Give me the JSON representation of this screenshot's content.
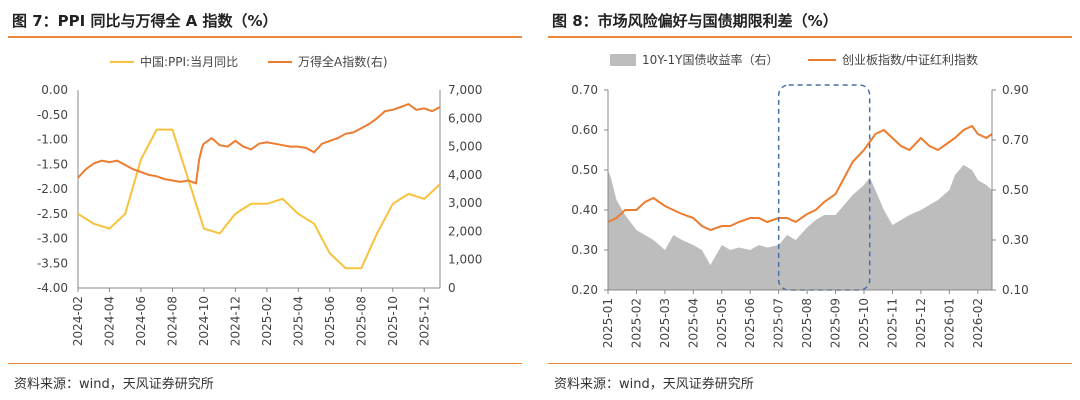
{
  "left": {
    "title": "图 7：PPI 同比与万得全 A 指数（%）",
    "source": "资料来源：wind，天风证券研究所"
  },
  "right": {
    "title": "图 8：市场风险偏好与国债期限利差（%）",
    "source": "资料来源：wind，天风证券研究所"
  },
  "chart_data": [
    {
      "type": "line",
      "title": "PPI 同比与万得全 A 指数（%）",
      "x_labels": [
        "2024-02",
        "2024-04",
        "2024-06",
        "2024-08",
        "2024-10",
        "2024-12",
        "2025-02",
        "2025-04",
        "2025-06",
        "2025-08",
        "2025-10",
        "2025-12"
      ],
      "y_left_ticks": [
        "0.00",
        "-0.50",
        "-1.00",
        "-1.50",
        "-2.00",
        "-2.50",
        "-3.00",
        "-3.50",
        "-4.00"
      ],
      "y_left_range": [
        -4.0,
        0.0
      ],
      "y_right_ticks": [
        "7,000",
        "6,000",
        "5,000",
        "4,000",
        "3,000",
        "2,000",
        "1,000",
        "0"
      ],
      "y_right_range": [
        0,
        7000
      ],
      "legend": [
        "中国:PPI:当月同比",
        "万得全A指数(右)"
      ],
      "colors": {
        "ppi": "#f7c23e",
        "index": "#ec7c30"
      },
      "series": [
        {
          "name": "中国:PPI:当月同比",
          "axis": "left",
          "x": [
            0,
            1,
            2,
            3,
            4,
            5,
            6,
            7,
            8,
            9,
            10,
            11,
            12,
            13,
            14,
            15,
            16,
            17,
            18,
            19,
            20,
            21,
            22,
            23
          ],
          "values": [
            -2.5,
            -2.7,
            -2.8,
            -2.5,
            -1.4,
            -0.8,
            -0.8,
            -1.8,
            -2.8,
            -2.9,
            -2.5,
            -2.3,
            -2.3,
            -2.2,
            -2.5,
            -2.7,
            -3.3,
            -3.6,
            -3.6,
            -2.9,
            -2.3,
            -2.1,
            -2.2,
            -1.9
          ]
        },
        {
          "name": "万得全A指数(右)",
          "axis": "right",
          "x": [
            0,
            0.5,
            1,
            1.5,
            2,
            2.5,
            3,
            3.5,
            4,
            4.5,
            5,
            5.5,
            6,
            6.5,
            7,
            7.5,
            7.7,
            7.9,
            8,
            8.5,
            9,
            9.5,
            10,
            10.5,
            11,
            11.5,
            12,
            12.5,
            13,
            13.5,
            14,
            14.5,
            15,
            15.5,
            16,
            16.5,
            17,
            17.5,
            18,
            18.5,
            19,
            19.5,
            20,
            20.5,
            21,
            21.5,
            22,
            22.5,
            23
          ],
          "values": [
            3900,
            4200,
            4400,
            4500,
            4450,
            4500,
            4350,
            4200,
            4100,
            4000,
            3950,
            3850,
            3800,
            3750,
            3800,
            3700,
            4550,
            5000,
            5100,
            5300,
            5050,
            5000,
            5200,
            5000,
            4900,
            5100,
            5150,
            5100,
            5050,
            5000,
            5000,
            4950,
            4800,
            5100,
            5200,
            5300,
            5450,
            5500,
            5650,
            5800,
            6000,
            6250,
            6300,
            6400,
            6500,
            6300,
            6350,
            6250,
            6400
          ]
        }
      ]
    },
    {
      "type": "line",
      "title": "市场风险偏好与国债期限利差（%）",
      "x_labels": [
        "2025-01",
        "2025-02",
        "2025-03",
        "2025-04",
        "2025-05",
        "2025-06",
        "2025-07",
        "2025-08",
        "2025-09",
        "2025-10",
        "2025-11",
        "2025-12",
        "2026-01",
        "2026-02"
      ],
      "y_left_ticks": [
        "0.70",
        "0.60",
        "0.50",
        "0.40",
        "0.30",
        "0.20"
      ],
      "y_left_range": [
        0.2,
        0.7
      ],
      "y_right_ticks": [
        "0.90",
        "0.70",
        "0.50",
        "0.30",
        "0.10"
      ],
      "y_right_range": [
        0.1,
        0.9
      ],
      "legend": [
        "10Y-1Y国债收益率（右）",
        "创业板指数/中证红利指数"
      ],
      "colors": {
        "area": "#bdbdbd",
        "ratio": "#ec7c30",
        "box": "#4a6fa5"
      },
      "series": [
        {
          "name": "10Y-1Y国债收益率（右）",
          "axis": "right",
          "type": "area",
          "x": [
            0,
            0.1,
            0.3,
            0.6,
            1,
            1.3,
            1.6,
            2,
            2.3,
            2.6,
            3,
            3.3,
            3.6,
            4,
            4.3,
            4.6,
            5,
            5.3,
            5.6,
            6,
            6.3,
            6.6,
            7,
            7.3,
            7.6,
            8,
            8.3,
            8.6,
            9,
            9.2,
            9.4,
            9.7,
            10,
            10.3,
            10.6,
            11,
            11.3,
            11.6,
            12,
            12.2,
            12.5,
            12.8,
            13,
            13.3,
            13.5
          ],
          "values": [
            0.58,
            0.55,
            0.46,
            0.4,
            0.34,
            0.32,
            0.3,
            0.26,
            0.32,
            0.3,
            0.28,
            0.26,
            0.2,
            0.28,
            0.26,
            0.27,
            0.26,
            0.28,
            0.27,
            0.28,
            0.32,
            0.3,
            0.35,
            0.38,
            0.4,
            0.4,
            0.44,
            0.48,
            0.52,
            0.55,
            0.5,
            0.42,
            0.36,
            0.38,
            0.4,
            0.42,
            0.44,
            0.46,
            0.5,
            0.56,
            0.6,
            0.58,
            0.54,
            0.52,
            0.5
          ]
        },
        {
          "name": "创业板指数/中证红利指数",
          "axis": "left",
          "x": [
            0,
            0.3,
            0.6,
            1,
            1.3,
            1.6,
            2,
            2.3,
            2.6,
            3,
            3.3,
            3.6,
            4,
            4.3,
            4.6,
            5,
            5.3,
            5.6,
            6,
            6.3,
            6.6,
            7,
            7.3,
            7.6,
            8,
            8.3,
            8.6,
            9,
            9.2,
            9.4,
            9.7,
            10,
            10.3,
            10.6,
            11,
            11.3,
            11.6,
            12,
            12.2,
            12.5,
            12.8,
            13,
            13.3,
            13.5
          ],
          "values": [
            0.37,
            0.38,
            0.4,
            0.4,
            0.42,
            0.43,
            0.41,
            0.4,
            0.39,
            0.38,
            0.36,
            0.35,
            0.36,
            0.36,
            0.37,
            0.38,
            0.38,
            0.37,
            0.38,
            0.38,
            0.37,
            0.39,
            0.4,
            0.42,
            0.44,
            0.48,
            0.52,
            0.55,
            0.57,
            0.59,
            0.6,
            0.58,
            0.56,
            0.55,
            0.58,
            0.56,
            0.55,
            0.57,
            0.58,
            0.6,
            0.61,
            0.59,
            0.58,
            0.59
          ]
        }
      ],
      "highlight_range": [
        6.0,
        9.2
      ]
    }
  ]
}
